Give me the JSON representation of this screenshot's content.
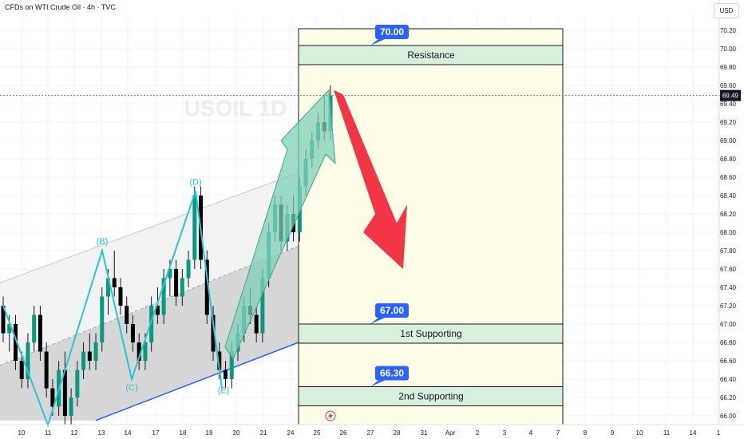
{
  "header": {
    "title": "CFDs on WTI Crude Oil · 4h · TVC",
    "currency": "USD"
  },
  "colors": {
    "up": "#089981",
    "down": "#000000",
    "wick": "#131722",
    "wave": "#26c6da",
    "trend": "#2962ff",
    "zone_fill": "#d8f0dc",
    "price_arrow": "#7fcfb8",
    "forecast_arrow": "#f23645",
    "label_blue": "#2962ff",
    "last_price_bg": "#131722"
  },
  "chart_data": {
    "type": "candlestick",
    "symbol_watermark": "USOIL 1D",
    "y_ticks": [
      "70.20",
      "70.00",
      "69.80",
      "69.60",
      "69.40",
      "69.20",
      "69.00",
      "68.80",
      "68.60",
      "68.40",
      "68.20",
      "68.00",
      "67.80",
      "67.60",
      "67.40",
      "67.20",
      "67.00",
      "66.80",
      "66.60",
      "66.40",
      "66.20",
      "66.00"
    ],
    "y_tick_values": [
      70.2,
      70.0,
      69.8,
      69.6,
      69.4,
      69.2,
      69.0,
      68.8,
      68.6,
      68.4,
      68.2,
      68.0,
      67.8,
      67.6,
      67.4,
      67.2,
      67.0,
      66.8,
      66.6,
      66.4,
      66.2,
      66.0
    ],
    "ylim": [
      65.9,
      70.35
    ],
    "x_labels": [
      "10",
      "11",
      "12",
      "13",
      "14",
      "17",
      "18",
      "19",
      "20",
      "21",
      "24",
      "25",
      "26",
      "27",
      "28",
      "31",
      "Apr",
      "2",
      "3",
      "4",
      "7",
      "8",
      "9",
      "10",
      "11",
      "14",
      "1"
    ],
    "last_price": "69.49",
    "last_price_value": 69.49,
    "candles": [
      [
        67.2,
        67.3,
        66.8,
        66.9
      ],
      [
        66.9,
        67.1,
        66.7,
        67.0
      ],
      [
        67.0,
        67.1,
        66.5,
        66.6
      ],
      [
        66.6,
        66.7,
        66.3,
        66.4
      ],
      [
        66.4,
        66.9,
        66.3,
        66.8
      ],
      [
        66.8,
        67.2,
        66.7,
        67.1
      ],
      [
        67.1,
        67.2,
        66.6,
        66.7
      ],
      [
        66.7,
        66.8,
        66.2,
        66.3
      ],
      [
        66.3,
        66.4,
        66.0,
        66.1
      ],
      [
        66.1,
        66.6,
        66.0,
        66.5
      ],
      [
        66.5,
        66.7,
        65.9,
        66.0
      ],
      [
        66.0,
        66.3,
        65.9,
        66.2
      ],
      [
        66.2,
        66.6,
        66.1,
        66.5
      ],
      [
        66.5,
        66.8,
        66.4,
        66.7
      ],
      [
        66.7,
        66.9,
        66.5,
        66.6
      ],
      [
        66.6,
        66.9,
        66.5,
        66.8
      ],
      [
        66.8,
        67.4,
        66.7,
        67.3
      ],
      [
        67.3,
        67.6,
        67.1,
        67.5
      ],
      [
        67.5,
        67.8,
        67.3,
        67.4
      ],
      [
        67.4,
        67.5,
        67.1,
        67.2
      ],
      [
        67.2,
        67.3,
        66.9,
        67.0
      ],
      [
        67.0,
        67.1,
        66.7,
        66.8
      ],
      [
        66.8,
        66.9,
        66.5,
        66.6
      ],
      [
        66.6,
        66.9,
        66.5,
        66.8
      ],
      [
        66.8,
        67.3,
        66.7,
        67.2
      ],
      [
        67.2,
        67.4,
        67.0,
        67.1
      ],
      [
        67.1,
        67.6,
        67.0,
        67.5
      ],
      [
        67.5,
        67.7,
        67.3,
        67.6
      ],
      [
        67.6,
        67.7,
        67.2,
        67.3
      ],
      [
        67.3,
        67.6,
        67.2,
        67.5
      ],
      [
        67.5,
        67.8,
        67.4,
        67.7
      ],
      [
        67.7,
        68.5,
        67.6,
        68.4
      ],
      [
        68.4,
        68.5,
        67.6,
        67.7
      ],
      [
        67.7,
        67.8,
        67.0,
        67.1
      ],
      [
        67.1,
        67.2,
        66.6,
        66.7
      ],
      [
        66.7,
        66.8,
        66.4,
        66.5
      ],
      [
        66.5,
        66.6,
        66.3,
        66.4
      ],
      [
        66.4,
        66.8,
        66.3,
        66.7
      ],
      [
        66.7,
        67.0,
        66.6,
        66.9
      ],
      [
        66.9,
        67.3,
        66.8,
        67.2
      ],
      [
        67.2,
        67.4,
        67.0,
        67.1
      ],
      [
        67.1,
        67.2,
        66.8,
        66.9
      ],
      [
        66.9,
        67.6,
        66.8,
        67.5
      ],
      [
        67.5,
        68.1,
        67.4,
        68.0
      ],
      [
        68.0,
        68.4,
        67.9,
        68.3
      ],
      [
        68.3,
        68.4,
        67.8,
        67.9
      ],
      [
        67.9,
        68.3,
        67.8,
        68.2
      ],
      [
        68.2,
        68.4,
        67.9,
        68.0
      ],
      [
        68.0,
        68.6,
        67.9,
        68.5
      ],
      [
        68.5,
        68.9,
        68.4,
        68.8
      ],
      [
        68.8,
        69.1,
        68.7,
        69.0
      ],
      [
        69.0,
        69.3,
        68.9,
        69.2
      ],
      [
        69.2,
        69.5,
        69.0,
        69.1
      ],
      [
        69.1,
        69.6,
        69.0,
        69.49
      ]
    ],
    "annotations": {
      "wave_labels": [
        "(B)",
        "(C)",
        "(D)",
        "(E)"
      ],
      "resistance": {
        "label": "Resistance",
        "price_tag": "70.00",
        "price": 70.0
      },
      "support1": {
        "label": "1st Supporting",
        "price_tag": "67.00",
        "price": 67.0
      },
      "support2": {
        "label": "2nd Supporting",
        "price_tag": "66.30",
        "price": 66.3
      }
    },
    "grid": true
  }
}
